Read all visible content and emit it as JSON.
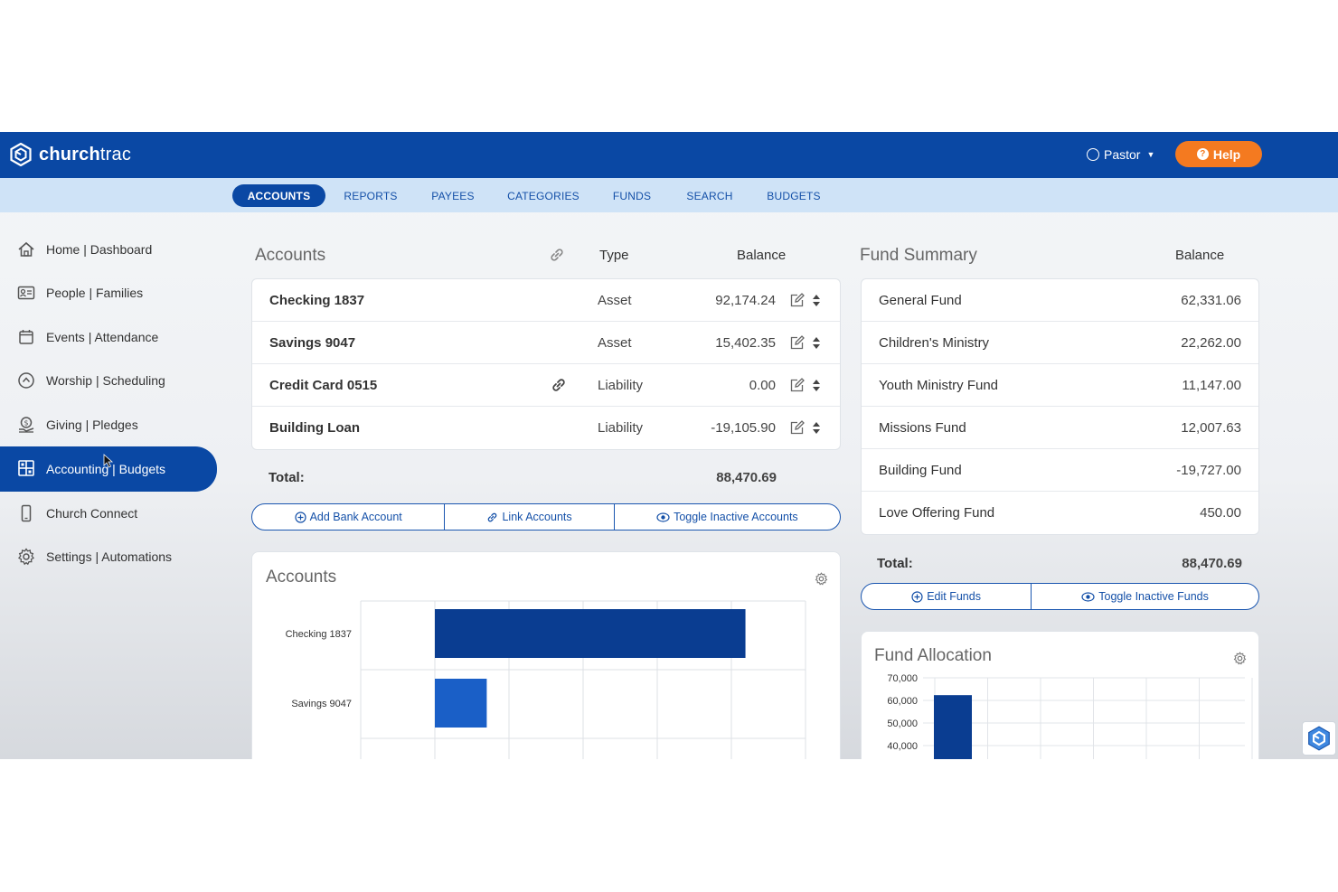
{
  "header": {
    "brand": {
      "prefix": "church",
      "suffix": "trac"
    },
    "user_label": "Pastor",
    "help_label": "Help"
  },
  "subnav": {
    "tabs": [
      {
        "label": "ACCOUNTS",
        "active": true
      },
      {
        "label": "REPORTS"
      },
      {
        "label": "PAYEES"
      },
      {
        "label": "CATEGORIES"
      },
      {
        "label": "FUNDS"
      },
      {
        "label": "SEARCH"
      },
      {
        "label": "BUDGETS"
      }
    ]
  },
  "sidebar": {
    "items": [
      {
        "label": "Home | Dashboard",
        "icon": "home-icon"
      },
      {
        "label": "People | Families",
        "icon": "id-card-icon"
      },
      {
        "label": "Events | Attendance",
        "icon": "calendar-icon"
      },
      {
        "label": "Worship | Scheduling",
        "icon": "worship-icon"
      },
      {
        "label": "Giving | Pledges",
        "icon": "giving-icon"
      },
      {
        "label": "Accounting | Budgets",
        "icon": "grid-icon",
        "active": true
      },
      {
        "label": "Church Connect",
        "icon": "phone-icon"
      },
      {
        "label": "Settings | Automations",
        "icon": "gear-icon"
      }
    ]
  },
  "accounts": {
    "title": "Accounts",
    "col_type": "Type",
    "col_balance": "Balance",
    "rows": [
      {
        "name": "Checking 1837",
        "type": "Asset",
        "balance": "92,174.24"
      },
      {
        "name": "Savings 9047",
        "type": "Asset",
        "balance": "15,402.35"
      },
      {
        "name": "Credit Card 0515",
        "type": "Liability",
        "balance": "0.00",
        "linked": true
      },
      {
        "name": "Building Loan",
        "type": "Liability",
        "balance": "-19,105.90"
      }
    ],
    "total_label": "Total:",
    "total_value": "88,470.69",
    "buttons": {
      "add_bank": "Add Bank Account",
      "link": "Link Accounts",
      "toggle_inactive": "Toggle Inactive Accounts"
    }
  },
  "fund_summary": {
    "title": "Fund Summary",
    "col_balance": "Balance",
    "rows": [
      {
        "name": "General Fund",
        "balance": "62,331.06"
      },
      {
        "name": "Children's Ministry",
        "balance": "22,262.00"
      },
      {
        "name": "Youth Ministry Fund",
        "balance": "11,147.00"
      },
      {
        "name": "Missions Fund",
        "balance": "12,007.63"
      },
      {
        "name": "Building Fund",
        "balance": "-19,727.00"
      },
      {
        "name": "Love Offering Fund",
        "balance": "450.00"
      }
    ],
    "total_label": "Total:",
    "total_value": "88,470.69",
    "buttons": {
      "edit": "Edit Funds",
      "toggle_inactive": "Toggle Inactive Funds"
    }
  },
  "accounts_chart": {
    "title": "Accounts",
    "categories": [
      "Checking 1837",
      "Savings 9047"
    ],
    "values": [
      92174.24,
      15402.35
    ],
    "colors": [
      "#0a3d91",
      "#1a5fc7"
    ],
    "xlim": [
      0,
      110000
    ]
  },
  "fund_allocation_chart": {
    "title": "Fund Allocation",
    "y_ticks": [
      "70,000",
      "60,000",
      "50,000",
      "40,000"
    ],
    "values": [
      62331.06
    ],
    "ylim_top": 70000,
    "tick_step": 10000,
    "bar_color": "#0a3d91"
  }
}
